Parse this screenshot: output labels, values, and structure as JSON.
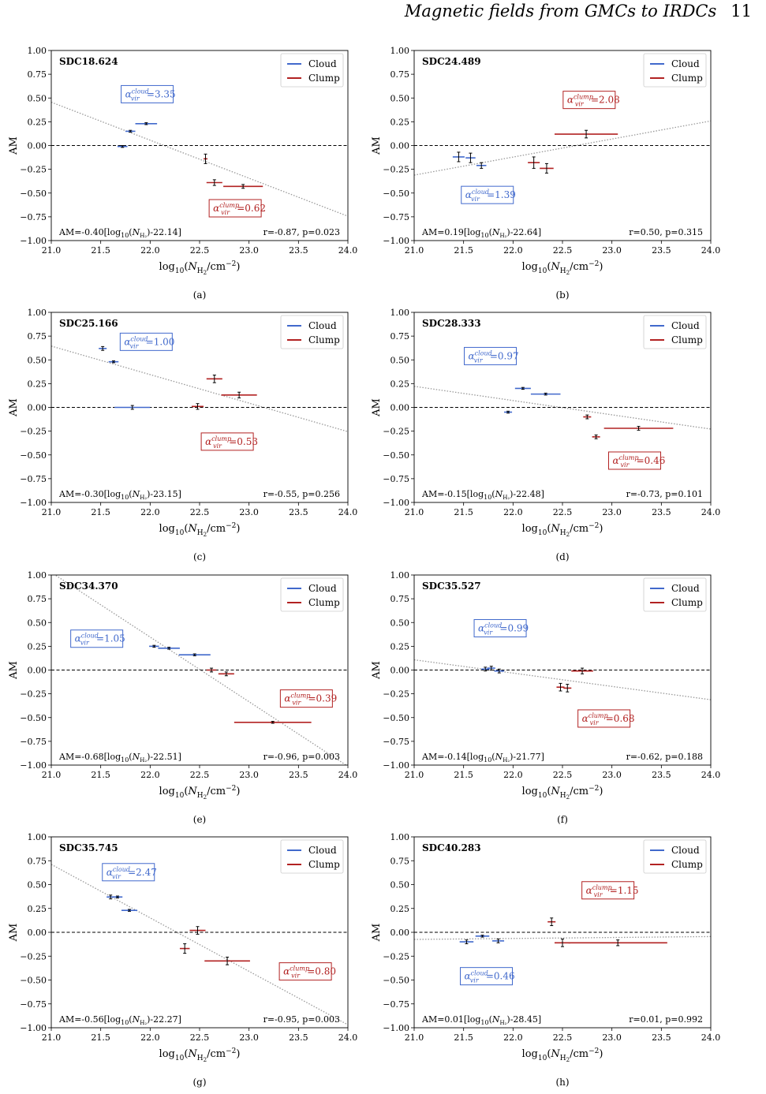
{
  "header": {
    "running_title": "Magnetic fields from GMCs to IRDCs",
    "page_number": "11"
  },
  "colors": {
    "cloud": "#4169cc",
    "clump": "#b22222",
    "fit": "#999999"
  },
  "chart_data": [
    {
      "type": "scatter",
      "panel_label": "(a)",
      "title": "SDC18.624",
      "xlabel": "log10(N_H2/cm^-2)",
      "ylabel": "AM",
      "xlim": [
        21.0,
        24.0
      ],
      "ylim": [
        -1.0,
        1.0
      ],
      "xticks": [
        "21.0",
        "21.5",
        "22.0",
        "22.5",
        "23.0",
        "23.5",
        "24.0"
      ],
      "yticks": [
        "1.00",
        "0.75",
        "0.50",
        "0.25",
        "0.00",
        "−0.25",
        "−0.50",
        "−0.75",
        "−1.00"
      ],
      "legend": [
        "Cloud",
        "Clump"
      ],
      "legend_position": "upper right",
      "series": [
        {
          "name": "Cloud",
          "points": [
            {
              "x": 21.72,
              "y": -0.01,
              "xerr": 0.05,
              "yerr": 0.01
            },
            {
              "x": 21.8,
              "y": 0.15,
              "xerr": 0.05,
              "yerr": 0.01
            },
            {
              "x": 21.96,
              "y": 0.23,
              "xerr": 0.11,
              "yerr": 0.01
            }
          ]
        },
        {
          "name": "Clump",
          "points": [
            {
              "x": 22.56,
              "y": -0.14,
              "xerr": 0.02,
              "yerr": 0.05
            },
            {
              "x": 22.65,
              "y": -0.39,
              "xerr": 0.08,
              "yerr": 0.03
            },
            {
              "x": 22.94,
              "y": -0.43,
              "xerr": 0.2,
              "yerr": 0.02
            }
          ]
        }
      ],
      "fit": {
        "slope": -0.4,
        "x0": 22.14
      },
      "cloud_label": "α_vir^cloud=3.35",
      "cloud_label_xy": [
        21.97,
        0.54
      ],
      "clump_label": "α_vir^clump=0.62",
      "clump_label_xy": [
        22.86,
        -0.66
      ],
      "fit_text": "AM=-0.40[log10(N_H2)-22.14]",
      "stats_text": "r=-0.87, p=0.023"
    },
    {
      "type": "scatter",
      "panel_label": "(b)",
      "title": "SDC24.489",
      "xlabel": "log10(N_H2/cm^-2)",
      "ylabel": "AM",
      "xlim": [
        21.0,
        24.0
      ],
      "ylim": [
        -1.0,
        1.0
      ],
      "xticks": [
        "21.0",
        "21.5",
        "22.0",
        "22.5",
        "23.0",
        "23.5",
        "24.0"
      ],
      "yticks": [
        "1.00",
        "0.75",
        "0.50",
        "0.25",
        "0.00",
        "−0.25",
        "−0.50",
        "−0.75",
        "−1.00"
      ],
      "legend": [
        "Cloud",
        "Clump"
      ],
      "legend_position": "upper right",
      "series": [
        {
          "name": "Cloud",
          "points": [
            {
              "x": 21.45,
              "y": -0.12,
              "xerr": 0.06,
              "yerr": 0.05
            },
            {
              "x": 21.57,
              "y": -0.13,
              "xerr": 0.05,
              "yerr": 0.05
            },
            {
              "x": 21.68,
              "y": -0.21,
              "xerr": 0.05,
              "yerr": 0.03
            }
          ]
        },
        {
          "name": "Clump",
          "points": [
            {
              "x": 22.21,
              "y": -0.18,
              "xerr": 0.06,
              "yerr": 0.06
            },
            {
              "x": 22.34,
              "y": -0.24,
              "xerr": 0.07,
              "yerr": 0.05
            },
            {
              "x": 22.74,
              "y": 0.12,
              "xerr": 0.32,
              "yerr": 0.04
            }
          ]
        }
      ],
      "fit": {
        "slope": 0.19,
        "x0": 22.64
      },
      "cloud_label": "α_vir^cloud=1.39",
      "cloud_label_xy": [
        21.74,
        -0.52
      ],
      "clump_label": "α_vir^clump=2.08",
      "clump_label_xy": [
        22.77,
        0.48
      ],
      "fit_text": "AM=0.19[log10(N_H2)-22.64]",
      "stats_text": "r=0.50, p=0.315"
    },
    {
      "type": "scatter",
      "panel_label": "(c)",
      "title": "SDC25.166",
      "xlabel": "log10(N_H2/cm^-2)",
      "ylabel": "AM",
      "xlim": [
        21.0,
        24.0
      ],
      "ylim": [
        -1.0,
        1.0
      ],
      "xticks": [
        "21.0",
        "21.5",
        "22.0",
        "22.5",
        "23.0",
        "23.5",
        "24.0"
      ],
      "yticks": [
        "1.00",
        "0.75",
        "0.50",
        "0.25",
        "0.00",
        "−0.25",
        "−0.50",
        "−0.75",
        "−1.00"
      ],
      "legend": [
        "Cloud",
        "Clump"
      ],
      "legend_position": "upper right",
      "series": [
        {
          "name": "Cloud",
          "points": [
            {
              "x": 21.52,
              "y": 0.62,
              "xerr": 0.04,
              "yerr": 0.02
            },
            {
              "x": 21.63,
              "y": 0.48,
              "xerr": 0.05,
              "yerr": 0.01
            },
            {
              "x": 21.82,
              "y": 0.0,
              "xerr": 0.18,
              "yerr": 0.02
            }
          ]
        },
        {
          "name": "Clump",
          "points": [
            {
              "x": 22.48,
              "y": 0.01,
              "xerr": 0.06,
              "yerr": 0.03
            },
            {
              "x": 22.65,
              "y": 0.3,
              "xerr": 0.08,
              "yerr": 0.04
            },
            {
              "x": 22.9,
              "y": 0.13,
              "xerr": 0.18,
              "yerr": 0.03
            }
          ]
        }
      ],
      "fit": {
        "slope": -0.3,
        "x0": 23.15
      },
      "cloud_label": "α_vir^cloud=1.00",
      "cloud_label_xy": [
        21.96,
        0.69
      ],
      "clump_label": "α_vir^clump=0.53",
      "clump_label_xy": [
        22.78,
        -0.36
      ],
      "fit_text": "AM=-0.30[log10(N_H2)-23.15]",
      "stats_text": "r=-0.55, p=0.256"
    },
    {
      "type": "scatter",
      "panel_label": "(d)",
      "title": "SDC28.333",
      "xlabel": "log10(N_H2/cm^-2)",
      "ylabel": "AM",
      "xlim": [
        21.0,
        24.0
      ],
      "ylim": [
        -1.0,
        1.0
      ],
      "xticks": [
        "21.0",
        "21.5",
        "22.0",
        "22.5",
        "23.0",
        "23.5",
        "24.0"
      ],
      "yticks": [
        "1.00",
        "0.75",
        "0.50",
        "0.25",
        "0.00",
        "−0.25",
        "−0.50",
        "−0.75",
        "−1.00"
      ],
      "legend": [
        "Cloud",
        "Clump"
      ],
      "legend_position": "upper right",
      "series": [
        {
          "name": "Cloud",
          "points": [
            {
              "x": 21.95,
              "y": -0.05,
              "xerr": 0.04,
              "yerr": 0.01
            },
            {
              "x": 22.1,
              "y": 0.2,
              "xerr": 0.08,
              "yerr": 0.01
            },
            {
              "x": 22.33,
              "y": 0.14,
              "xerr": 0.15,
              "yerr": 0.01
            }
          ]
        },
        {
          "name": "Clump",
          "points": [
            {
              "x": 22.75,
              "y": -0.1,
              "xerr": 0.04,
              "yerr": 0.02
            },
            {
              "x": 22.84,
              "y": -0.31,
              "xerr": 0.04,
              "yerr": 0.02
            },
            {
              "x": 23.27,
              "y": -0.22,
              "xerr": 0.35,
              "yerr": 0.02
            }
          ]
        }
      ],
      "fit": {
        "slope": -0.15,
        "x0": 22.48
      },
      "cloud_label": "α_vir^cloud=0.97",
      "cloud_label_xy": [
        21.77,
        0.54
      ],
      "clump_label": "α_vir^clump=0.46",
      "clump_label_xy": [
        23.23,
        -0.56
      ],
      "fit_text": "AM=-0.15[log10(N_H2)-22.48]",
      "stats_text": "r=-0.73, p=0.101"
    },
    {
      "type": "scatter",
      "panel_label": "(e)",
      "title": "SDC34.370",
      "xlabel": "log10(N_H2/cm^-2)",
      "ylabel": "AM",
      "xlim": [
        21.0,
        24.0
      ],
      "ylim": [
        -1.0,
        1.0
      ],
      "xticks": [
        "21.0",
        "21.5",
        "22.0",
        "22.5",
        "23.0",
        "23.5",
        "24.0"
      ],
      "yticks": [
        "1.00",
        "0.75",
        "0.50",
        "0.25",
        "0.00",
        "−0.25",
        "−0.50",
        "−0.75",
        "−1.00"
      ],
      "legend": [
        "Cloud",
        "Clump"
      ],
      "legend_position": "upper right",
      "series": [
        {
          "name": "Cloud",
          "points": [
            {
              "x": 22.04,
              "y": 0.25,
              "xerr": 0.05,
              "yerr": 0.01
            },
            {
              "x": 22.19,
              "y": 0.23,
              "xerr": 0.11,
              "yerr": 0.01
            },
            {
              "x": 22.45,
              "y": 0.16,
              "xerr": 0.16,
              "yerr": 0.01
            }
          ]
        },
        {
          "name": "Clump",
          "points": [
            {
              "x": 22.62,
              "y": 0.0,
              "xerr": 0.05,
              "yerr": 0.02
            },
            {
              "x": 22.77,
              "y": -0.04,
              "xerr": 0.08,
              "yerr": 0.02
            },
            {
              "x": 23.24,
              "y": -0.55,
              "xerr": 0.39,
              "yerr": 0.01
            }
          ]
        }
      ],
      "fit": {
        "slope": -0.68,
        "x0": 22.51
      },
      "cloud_label": "α_vir^cloud=1.05",
      "cloud_label_xy": [
        21.46,
        0.33
      ],
      "clump_label": "α_vir^clump=0.39",
      "clump_label_xy": [
        23.58,
        -0.3
      ],
      "fit_text": "AM=-0.68[log10(N_H2)-22.51]",
      "stats_text": "r=-0.96, p=0.003"
    },
    {
      "type": "scatter",
      "panel_label": "(f)",
      "title": "SDC35.527",
      "xlabel": "log10(N_H2/cm^-2)",
      "ylabel": "AM",
      "xlim": [
        21.0,
        24.0
      ],
      "ylim": [
        -1.0,
        1.0
      ],
      "xticks": [
        "21.0",
        "21.5",
        "22.0",
        "22.5",
        "23.0",
        "23.5",
        "24.0"
      ],
      "yticks": [
        "1.00",
        "0.75",
        "0.50",
        "0.25",
        "0.00",
        "−0.25",
        "−0.50",
        "−0.75",
        "−1.00"
      ],
      "legend": [
        "Cloud",
        "Clump"
      ],
      "legend_position": "upper right",
      "series": [
        {
          "name": "Cloud",
          "points": [
            {
              "x": 21.72,
              "y": 0.01,
              "xerr": 0.04,
              "yerr": 0.02
            },
            {
              "x": 21.78,
              "y": 0.02,
              "xerr": 0.04,
              "yerr": 0.02
            },
            {
              "x": 21.86,
              "y": -0.01,
              "xerr": 0.05,
              "yerr": 0.02
            }
          ]
        },
        {
          "name": "Clump",
          "points": [
            {
              "x": 22.48,
              "y": -0.18,
              "xerr": 0.04,
              "yerr": 0.04
            },
            {
              "x": 22.55,
              "y": -0.19,
              "xerr": 0.04,
              "yerr": 0.04
            },
            {
              "x": 22.7,
              "y": -0.01,
              "xerr": 0.11,
              "yerr": 0.03
            }
          ]
        }
      ],
      "fit": {
        "slope": -0.14,
        "x0": 21.77
      },
      "cloud_label": "α_vir^cloud=0.99",
      "cloud_label_xy": [
        21.87,
        0.44
      ],
      "clump_label": "α_vir^clump=0.68",
      "clump_label_xy": [
        22.92,
        -0.51
      ],
      "fit_text": "AM=-0.14[log10(N_H2)-21.77]",
      "stats_text": "r=-0.62, p=0.188"
    },
    {
      "type": "scatter",
      "panel_label": "(g)",
      "title": "SDC35.745",
      "xlabel": "log10(N_H2/cm^-2)",
      "ylabel": "AM",
      "xlim": [
        21.0,
        24.0
      ],
      "ylim": [
        -1.0,
        1.0
      ],
      "xticks": [
        "21.0",
        "21.5",
        "22.0",
        "22.5",
        "23.0",
        "23.5",
        "24.0"
      ],
      "yticks": [
        "1.00",
        "0.75",
        "0.50",
        "0.25",
        "0.00",
        "−0.25",
        "−0.50",
        "−0.75",
        "−1.00"
      ],
      "legend": [
        "Cloud",
        "Clump"
      ],
      "legend_position": "upper right",
      "series": [
        {
          "name": "Cloud",
          "points": [
            {
              "x": 21.6,
              "y": 0.37,
              "xerr": 0.04,
              "yerr": 0.02
            },
            {
              "x": 21.67,
              "y": 0.37,
              "xerr": 0.05,
              "yerr": 0.01
            },
            {
              "x": 21.79,
              "y": 0.23,
              "xerr": 0.08,
              "yerr": 0.01
            }
          ]
        },
        {
          "name": "Clump",
          "points": [
            {
              "x": 22.35,
              "y": -0.17,
              "xerr": 0.05,
              "yerr": 0.05
            },
            {
              "x": 22.48,
              "y": 0.02,
              "xerr": 0.08,
              "yerr": 0.04
            },
            {
              "x": 22.78,
              "y": -0.3,
              "xerr": 0.23,
              "yerr": 0.04
            }
          ]
        }
      ],
      "fit": {
        "slope": -0.56,
        "x0": 22.27
      },
      "cloud_label": "α_vir^cloud=2.47",
      "cloud_label_xy": [
        21.78,
        0.63
      ],
      "clump_label": "α_vir^clump=0.80",
      "clump_label_xy": [
        23.57,
        -0.41
      ],
      "fit_text": "AM=-0.56[log10(N_H2)-22.27]",
      "stats_text": "r=-0.95, p=0.003"
    },
    {
      "type": "scatter",
      "panel_label": "(h)",
      "title": "SDC40.283",
      "xlabel": "log10(N_H2/cm^-2)",
      "ylabel": "AM",
      "xlim": [
        21.0,
        24.0
      ],
      "ylim": [
        -1.0,
        1.0
      ],
      "xticks": [
        "21.0",
        "21.5",
        "22.0",
        "22.5",
        "23.0",
        "23.5",
        "24.0"
      ],
      "yticks": [
        "1.00",
        "0.75",
        "0.50",
        "0.25",
        "0.00",
        "−0.25",
        "−0.50",
        "−0.75",
        "−1.00"
      ],
      "legend": [
        "Cloud",
        "Clump"
      ],
      "legend_position": "upper right",
      "series": [
        {
          "name": "Cloud",
          "points": [
            {
              "x": 21.53,
              "y": -0.1,
              "xerr": 0.07,
              "yerr": 0.02
            },
            {
              "x": 21.69,
              "y": -0.04,
              "xerr": 0.07,
              "yerr": 0.01
            },
            {
              "x": 21.85,
              "y": -0.09,
              "xerr": 0.06,
              "yerr": 0.02
            }
          ]
        },
        {
          "name": "Clump",
          "points": [
            {
              "x": 22.39,
              "y": 0.11,
              "xerr": 0.04,
              "yerr": 0.04
            },
            {
              "x": 22.5,
              "y": -0.11,
              "xerr": 0.08,
              "yerr": 0.04
            },
            {
              "x": 23.06,
              "y": -0.11,
              "xerr": 0.5,
              "yerr": 0.03
            }
          ]
        }
      ],
      "fit": {
        "slope": 0.01,
        "x0": 28.45
      },
      "cloud_label": "α_vir^cloud=0.46",
      "cloud_label_xy": [
        21.73,
        -0.46
      ],
      "clump_label": "α_vir^clump=1.15",
      "clump_label_xy": [
        22.96,
        0.44
      ],
      "fit_text": "AM=0.01[log10(N_H2)-28.45]",
      "stats_text": "r=0.01, p=0.992"
    }
  ]
}
